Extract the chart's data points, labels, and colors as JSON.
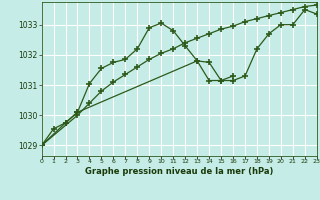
{
  "title": "Graphe pression niveau de la mer (hPa)",
  "background_color": "#c5ece6",
  "grid_color": "#ffffff",
  "line_color": "#2d5a1b",
  "x_values": [
    0,
    1,
    2,
    3,
    4,
    5,
    6,
    7,
    8,
    9,
    10,
    11,
    12,
    13,
    14,
    15,
    16,
    17,
    18,
    19,
    20,
    21,
    22,
    23
  ],
  "series1": [
    1029.0,
    1029.55,
    1029.75,
    1030.1,
    1031.05,
    1031.55,
    1031.75,
    1031.85,
    1032.2,
    1032.9,
    1033.05,
    1032.8,
    1032.3,
    1031.8,
    1031.75,
    1031.15,
    1031.15,
    1031.3,
    1032.2,
    1032.7,
    1033.0,
    1033.0,
    1033.5,
    1033.35
  ],
  "series2": [
    1029.0,
    null,
    1029.75,
    1030.1,
    null,
    null,
    null,
    null,
    null,
    null,
    null,
    null,
    null,
    1031.8,
    1031.15,
    1031.15,
    1031.3,
    null,
    null,
    null,
    null,
    null,
    null,
    null
  ],
  "series3": [
    1029.0,
    null,
    null,
    1030.0,
    1030.4,
    1030.8,
    1031.1,
    1031.35,
    1031.6,
    1031.85,
    1032.05,
    1032.2,
    1032.4,
    1032.55,
    1032.7,
    1032.85,
    1032.95,
    1033.1,
    1033.2,
    1033.3,
    1033.4,
    1033.5,
    1033.6,
    1033.65
  ],
  "ylim_min": 1028.65,
  "ylim_max": 1033.75,
  "yticks": [
    1029,
    1030,
    1031,
    1032,
    1033
  ],
  "xlim_min": 0,
  "xlim_max": 23
}
